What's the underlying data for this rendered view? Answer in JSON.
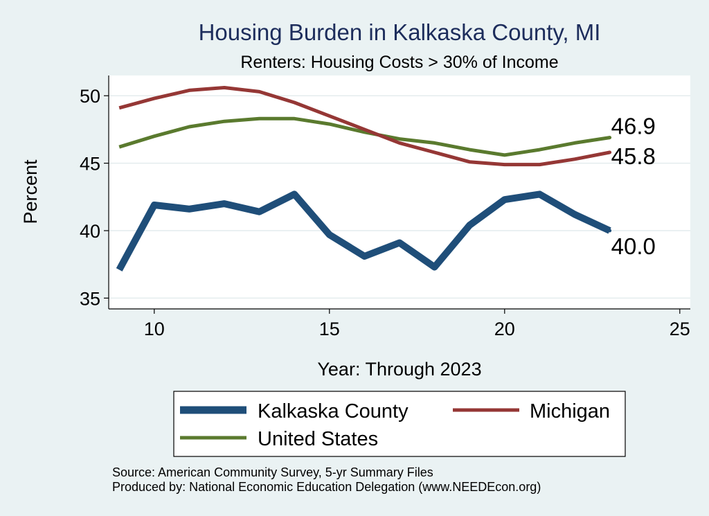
{
  "chart_data": {
    "type": "line",
    "title": "Housing Burden in Kalkaska County, MI",
    "subtitle": "Renters: Housing Costs > 30% of Income",
    "xlabel": "Year: Through 2023",
    "ylabel": "Percent",
    "xlim": [
      8.7,
      25.3
    ],
    "ylim": [
      34.2,
      51.5
    ],
    "xticks": [
      10,
      15,
      20,
      25
    ],
    "yticks": [
      35,
      40,
      45,
      50
    ],
    "grid": true,
    "legend_position": "bottom",
    "x": [
      9,
      10,
      11,
      12,
      13,
      14,
      15,
      16,
      17,
      18,
      19,
      20,
      21,
      22,
      23
    ],
    "series": [
      {
        "name": "Kalkaska County",
        "color": "#1f4e79",
        "values": [
          37.1,
          41.9,
          41.6,
          42.0,
          41.4,
          42.7,
          39.7,
          38.1,
          39.1,
          37.3,
          40.4,
          42.3,
          42.7,
          41.2,
          40.0
        ],
        "end_label": "40.0"
      },
      {
        "name": "Michigan",
        "color": "#953735",
        "values": [
          49.1,
          49.8,
          50.4,
          50.6,
          50.3,
          49.5,
          48.5,
          47.5,
          46.5,
          45.8,
          45.1,
          44.9,
          44.9,
          45.3,
          45.8
        ],
        "end_label": "45.8"
      },
      {
        "name": "United States",
        "color": "#5a7a2e",
        "values": [
          46.2,
          47.0,
          47.7,
          48.1,
          48.3,
          48.3,
          47.9,
          47.3,
          46.8,
          46.5,
          46.0,
          45.6,
          46.0,
          46.5,
          46.9
        ],
        "end_label": "46.9"
      }
    ]
  },
  "footer": {
    "source": "Source: American Community Survey, 5-yr Summary Files",
    "produced": "Produced by: National Economic Education Delegation (www.NEEDEcon.org)"
  }
}
